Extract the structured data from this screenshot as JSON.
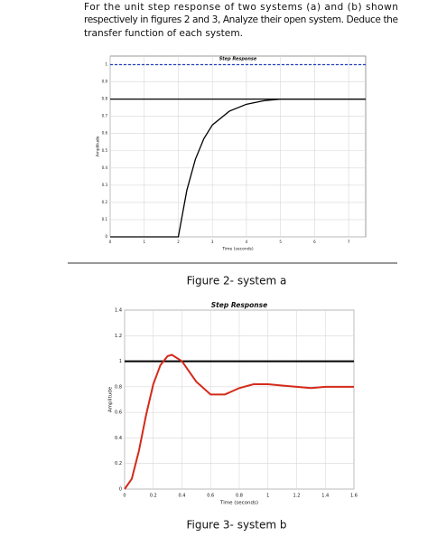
{
  "text_lines": [
    "For the unit step response of two systems (a) and (b) shown",
    "respectively in figures 2 and 3, Analyze their open system. Deduce the",
    "transfer function of each system."
  ],
  "figures": [
    {
      "chart_data": {
        "type": "line",
        "title": "Step Response",
        "x_label": "Time (seconds)",
        "y_label": "Amplitude",
        "xlim": [
          0,
          7.5
        ],
        "xticks": [
          0,
          1,
          2,
          3,
          4,
          5,
          6,
          7
        ],
        "ylim": [
          0,
          1.05
        ],
        "yticks": [
          0,
          0.1,
          0.2,
          0.3,
          0.4,
          0.5,
          0.6,
          0.7,
          0.8,
          0.9,
          1
        ],
        "grid": true,
        "series": [
          {
            "color": "#1f3fbf",
            "dashed": true,
            "x": [
              0,
              7.5
            ],
            "values": [
              1,
              1
            ]
          },
          {
            "color": "#000000",
            "x": [
              0,
              7.5
            ],
            "values": [
              0.8,
              0.8
            ]
          },
          {
            "color": "#000000",
            "x": [
              0,
              2,
              2.25,
              2.5,
              2.75,
              3,
              3.5,
              4,
              4.5,
              5,
              6,
              7.5
            ],
            "values": [
              0,
              0,
              0.27,
              0.45,
              0.57,
              0.65,
              0.73,
              0.77,
              0.79,
              0.8,
              0.8,
              0.8
            ]
          }
        ]
      },
      "caption": "Figure 2- system a"
    },
    {
      "chart_data": {
        "type": "line",
        "title": "Step Response",
        "x_label": "Time (seconds)",
        "y_label": "Amplitude",
        "xlim": [
          0,
          1.6
        ],
        "xticks": [
          0,
          0.2,
          0.4,
          0.6,
          0.8,
          1,
          1.2,
          1.4,
          1.6
        ],
        "ylim": [
          0,
          1.4
        ],
        "yticks": [
          0,
          0.2,
          0.4,
          0.6,
          0.8,
          1,
          1.2,
          1.4
        ],
        "grid": true,
        "series": [
          {
            "color": "#000000",
            "x": [
              0,
              1.6
            ],
            "values": [
              1,
              1
            ]
          },
          {
            "color": "#d42a1a",
            "x": [
              0,
              0.05,
              0.1,
              0.15,
              0.2,
              0.25,
              0.3,
              0.33,
              0.4,
              0.5,
              0.6,
              0.7,
              0.8,
              0.9,
              1,
              1.1,
              1.2,
              1.3,
              1.4,
              1.6
            ],
            "values": [
              0,
              0.08,
              0.3,
              0.58,
              0.82,
              0.97,
              1.04,
              1.05,
              1,
              0.84,
              0.74,
              0.74,
              0.79,
              0.82,
              0.82,
              0.81,
              0.8,
              0.79,
              0.8,
              0.8
            ]
          }
        ]
      },
      "caption": "Figure 3- system b"
    }
  ]
}
